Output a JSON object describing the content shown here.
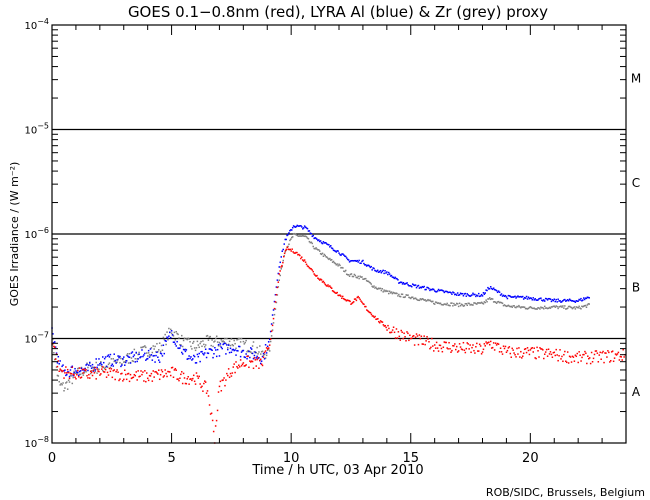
{
  "chart_data": {
    "type": "scatter",
    "title": "GOES 0.1−0.8nm (red), LYRA Al (blue) & Zr (grey) proxy",
    "xlabel": "Time / h UTC, 03 Apr 2010",
    "ylabel": "GOES Irradiance / (W m⁻²)",
    "xlim": [
      0,
      24
    ],
    "ylim": [
      1e-08,
      0.0001
    ],
    "yscale": "log",
    "x_ticks": [
      "0",
      "5",
      "10",
      "15",
      "20"
    ],
    "y_ticks": [
      {
        "base": "10",
        "exp": "−4"
      },
      {
        "base": "10",
        "exp": "−5"
      },
      {
        "base": "10",
        "exp": "−6"
      },
      {
        "base": "10",
        "exp": "−7"
      },
      {
        "base": "10",
        "exp": "−8"
      }
    ],
    "class_lines": [
      1e-05,
      1e-06,
      1e-07
    ],
    "flare_classes": [
      "M",
      "C",
      "B",
      "A"
    ],
    "credit": "ROB/SIDC, Brussels, Belgium",
    "series": [
      {
        "name": "LYRA Zr proxy",
        "color": "#808080",
        "points": [
          [
            0,
            1e-07
          ],
          [
            0.3,
            3.6e-08
          ],
          [
            0.5,
            3.4e-08
          ],
          [
            1,
            4.5e-08
          ],
          [
            1.5,
            5.2e-08
          ],
          [
            2,
            5.3e-08
          ],
          [
            3,
            6.2e-08
          ],
          [
            4,
            7.8e-08
          ],
          [
            4.5,
            8.1e-08
          ],
          [
            5,
            1.2e-07
          ],
          [
            5.5,
            9.1e-08
          ],
          [
            6,
            8.3e-08
          ],
          [
            6.5,
            9.3e-08
          ],
          [
            7,
            9.3e-08
          ],
          [
            7.5,
            9.3e-08
          ],
          [
            8,
            8.7e-08
          ],
          [
            8.5,
            8.1e-08
          ],
          [
            8.8,
            7e-08
          ],
          [
            9.1,
            7.8e-08
          ],
          [
            9.3,
            1.68e-07
          ],
          [
            9.5,
            3.6e-07
          ],
          [
            9.75,
            7e-07
          ],
          [
            10.1,
            9.8e-07
          ],
          [
            10.6,
            9.4e-07
          ],
          [
            11,
            7.3e-07
          ],
          [
            11.5,
            5.9e-07
          ],
          [
            12,
            5e-07
          ],
          [
            12.4,
            4.1e-07
          ],
          [
            13,
            3.8e-07
          ],
          [
            13.5,
            3.1e-07
          ],
          [
            14,
            2.8e-07
          ],
          [
            14.5,
            2.6e-07
          ],
          [
            15,
            2.5e-07
          ],
          [
            16,
            2.2e-07
          ],
          [
            17,
            2.1e-07
          ],
          [
            18,
            2.15e-07
          ],
          [
            18.3,
            2.4e-07
          ],
          [
            19,
            2.05e-07
          ],
          [
            20,
            1.96e-07
          ],
          [
            21,
            2e-07
          ],
          [
            22,
            1.96e-07
          ],
          [
            22.5,
            2.1e-07
          ]
        ]
      },
      {
        "name": "LYRA Al proxy",
        "color": "#0000ff",
        "points": [
          [
            0,
            1.2e-07
          ],
          [
            0.3,
            5.5e-08
          ],
          [
            0.5,
            4.8e-08
          ],
          [
            1,
            5e-08
          ],
          [
            1.5,
            5e-08
          ],
          [
            2,
            6.2e-08
          ],
          [
            3,
            6.2e-08
          ],
          [
            4,
            7e-08
          ],
          [
            4.5,
            6.7e-08
          ],
          [
            5,
            1.13e-07
          ],
          [
            5.5,
            7.4e-08
          ],
          [
            6,
            6e-08
          ],
          [
            6.5,
            7.3e-08
          ],
          [
            7,
            7.8e-08
          ],
          [
            7.5,
            8.3e-08
          ],
          [
            8,
            7.4e-08
          ],
          [
            8.5,
            7e-08
          ],
          [
            8.8,
            6.5e-08
          ],
          [
            9.1,
            9.7e-08
          ],
          [
            9.3,
            2.3e-07
          ],
          [
            9.5,
            5e-07
          ],
          [
            9.75,
            8.8e-07
          ],
          [
            10.1,
            1.2e-06
          ],
          [
            10.6,
            1.15e-06
          ],
          [
            11,
            9.2e-07
          ],
          [
            11.5,
            7.9e-07
          ],
          [
            12,
            6.7e-07
          ],
          [
            12.4,
            5.6e-07
          ],
          [
            13,
            5.4e-07
          ],
          [
            13.5,
            4.5e-07
          ],
          [
            14,
            4.3e-07
          ],
          [
            14.5,
            3.5e-07
          ],
          [
            15,
            3.25e-07
          ],
          [
            16,
            2.9e-07
          ],
          [
            17,
            2.65e-07
          ],
          [
            18,
            2.6e-07
          ],
          [
            18.3,
            3.1e-07
          ],
          [
            19,
            2.5e-07
          ],
          [
            20,
            2.44e-07
          ],
          [
            21,
            2.3e-07
          ],
          [
            22,
            2.3e-07
          ],
          [
            22.5,
            2.5e-07
          ]
        ]
      },
      {
        "name": "GOES 0.1-0.8nm",
        "color": "#ff0000",
        "points": [
          [
            0,
            1e-07
          ],
          [
            0.3,
            5e-08
          ],
          [
            0.5,
            4.8e-08
          ],
          [
            1,
            4.6e-08
          ],
          [
            1.5,
            4.5e-08
          ],
          [
            2,
            4.7e-08
          ],
          [
            3,
            4.5e-08
          ],
          [
            4,
            4.3e-08
          ],
          [
            4.5,
            4.5e-08
          ],
          [
            5,
            4.7e-08
          ],
          [
            5.5,
            4.2e-08
          ],
          [
            6,
            4.2e-08
          ],
          [
            6.5,
            3.2e-08
          ],
          [
            6.8,
            1.14e-08
          ],
          [
            7,
            3.4e-08
          ],
          [
            7.5,
            5e-08
          ],
          [
            8,
            6e-08
          ],
          [
            8.5,
            5.8e-08
          ],
          [
            8.8,
            5.8e-08
          ],
          [
            9.1,
            8.7e-08
          ],
          [
            9.3,
            1.87e-07
          ],
          [
            9.5,
            4.1e-07
          ],
          [
            9.8,
            7.3e-07
          ],
          [
            10.2,
            6.7e-07
          ],
          [
            10.6,
            5.4e-07
          ],
          [
            11,
            4.1e-07
          ],
          [
            11.5,
            3.25e-07
          ],
          [
            12,
            2.6e-07
          ],
          [
            12.5,
            2.2e-07
          ],
          [
            12.8,
            2.44e-07
          ],
          [
            13.2,
            1.87e-07
          ],
          [
            13.7,
            1.45e-07
          ],
          [
            14.2,
            1.2e-07
          ],
          [
            15,
            1e-07
          ],
          [
            16,
            8.7e-08
          ],
          [
            17,
            8.1e-08
          ],
          [
            18,
            7.8e-08
          ],
          [
            18.3,
            9.1e-08
          ],
          [
            19,
            7.4e-08
          ],
          [
            20,
            7.3e-08
          ],
          [
            21,
            7e-08
          ],
          [
            22,
            6.5e-08
          ],
          [
            23,
            6.7e-08
          ],
          [
            24,
            6.9e-08
          ]
        ]
      }
    ]
  }
}
